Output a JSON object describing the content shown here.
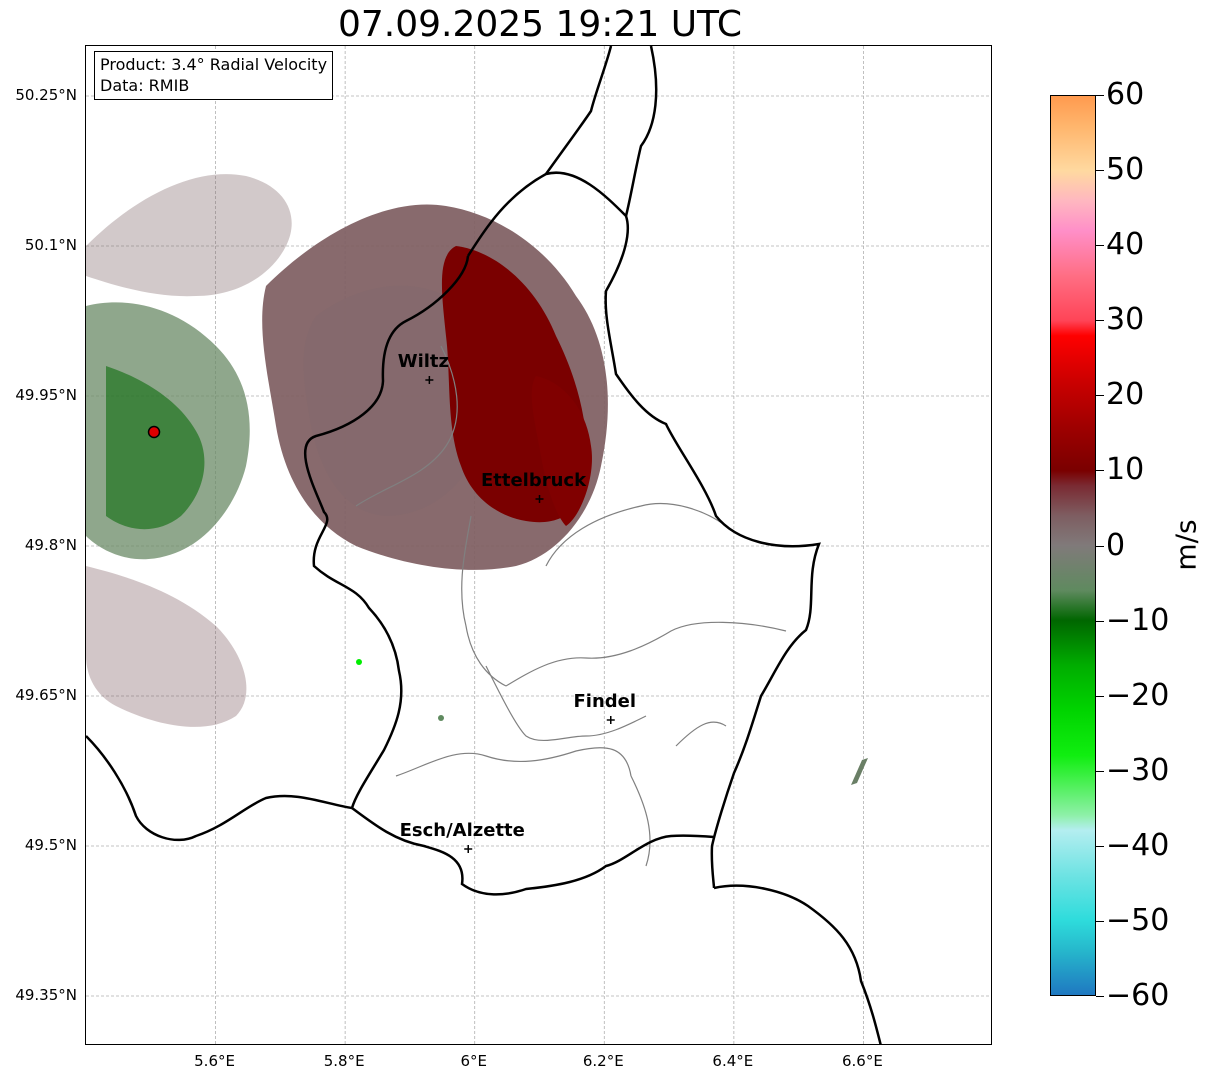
{
  "title": "07.09.2025 19:21 UTC",
  "info_box": {
    "product": "Product: 3.4° Radial Velocity",
    "data": "Data: RMIB"
  },
  "axes": {
    "y_ticks": [
      "50.25°N",
      "50.1°N",
      "49.95°N",
      "49.8°N",
      "49.65°N",
      "49.5°N",
      "49.35°N"
    ],
    "x_ticks": [
      "5.6°E",
      "5.8°E",
      "6°E",
      "6.2°E",
      "6.4°E",
      "6.6°E"
    ],
    "lon_range": [
      5.4,
      6.8
    ],
    "lat_range": [
      49.3,
      50.3
    ],
    "grid": true
  },
  "cities": [
    {
      "name": "Wiltz",
      "lon": 5.93,
      "lat": 49.966
    },
    {
      "name": "Ettelbruck",
      "lon": 6.1,
      "lat": 49.847
    },
    {
      "name": "Findel",
      "lon": 6.21,
      "lat": 49.626
    },
    {
      "name": "Esch/Alzette",
      "lon": 5.99,
      "lat": 49.497
    }
  ],
  "radar_site": {
    "lon": 5.505,
    "lat": 49.914,
    "color": "#dd0000"
  },
  "colorbar": {
    "unit": "m/s",
    "min": -60,
    "max": 60,
    "tick_labels": [
      "60",
      "50",
      "40",
      "30",
      "20",
      "10",
      "0",
      "−10",
      "−20",
      "−30",
      "−40",
      "−50",
      "−60"
    ],
    "stops": [
      {
        "v": -60,
        "color": "#1f78c1"
      },
      {
        "v": -54,
        "color": "#26b8cc"
      },
      {
        "v": -50,
        "color": "#2edcdc"
      },
      {
        "v": -44,
        "color": "#6ee3e3"
      },
      {
        "v": -38,
        "color": "#b4eef0"
      },
      {
        "v": -36,
        "color": "#8ef0a8"
      },
      {
        "v": -32,
        "color": "#4ff05a"
      },
      {
        "v": -28,
        "color": "#10ee10"
      },
      {
        "v": -22,
        "color": "#00d400"
      },
      {
        "v": -16,
        "color": "#00ad00"
      },
      {
        "v": -10,
        "color": "#006600"
      },
      {
        "v": -6,
        "color": "#5f8a5f"
      },
      {
        "v": 0,
        "color": "#807a7a"
      },
      {
        "v": 4,
        "color": "#7e5d61"
      },
      {
        "v": 8,
        "color": "#7a2a32"
      },
      {
        "v": 10,
        "color": "#7a0000"
      },
      {
        "v": 16,
        "color": "#a00000"
      },
      {
        "v": 22,
        "color": "#cc0000"
      },
      {
        "v": 28,
        "color": "#ff0000"
      },
      {
        "v": 30,
        "color": "#ff4457"
      },
      {
        "v": 36,
        "color": "#ff6e84"
      },
      {
        "v": 42,
        "color": "#ff8fc8"
      },
      {
        "v": 46,
        "color": "#ffb7c0"
      },
      {
        "v": 50,
        "color": "#ffd9a0"
      },
      {
        "v": 56,
        "color": "#ffb56c"
      },
      {
        "v": 60,
        "color": "#ff9a4e"
      }
    ]
  }
}
